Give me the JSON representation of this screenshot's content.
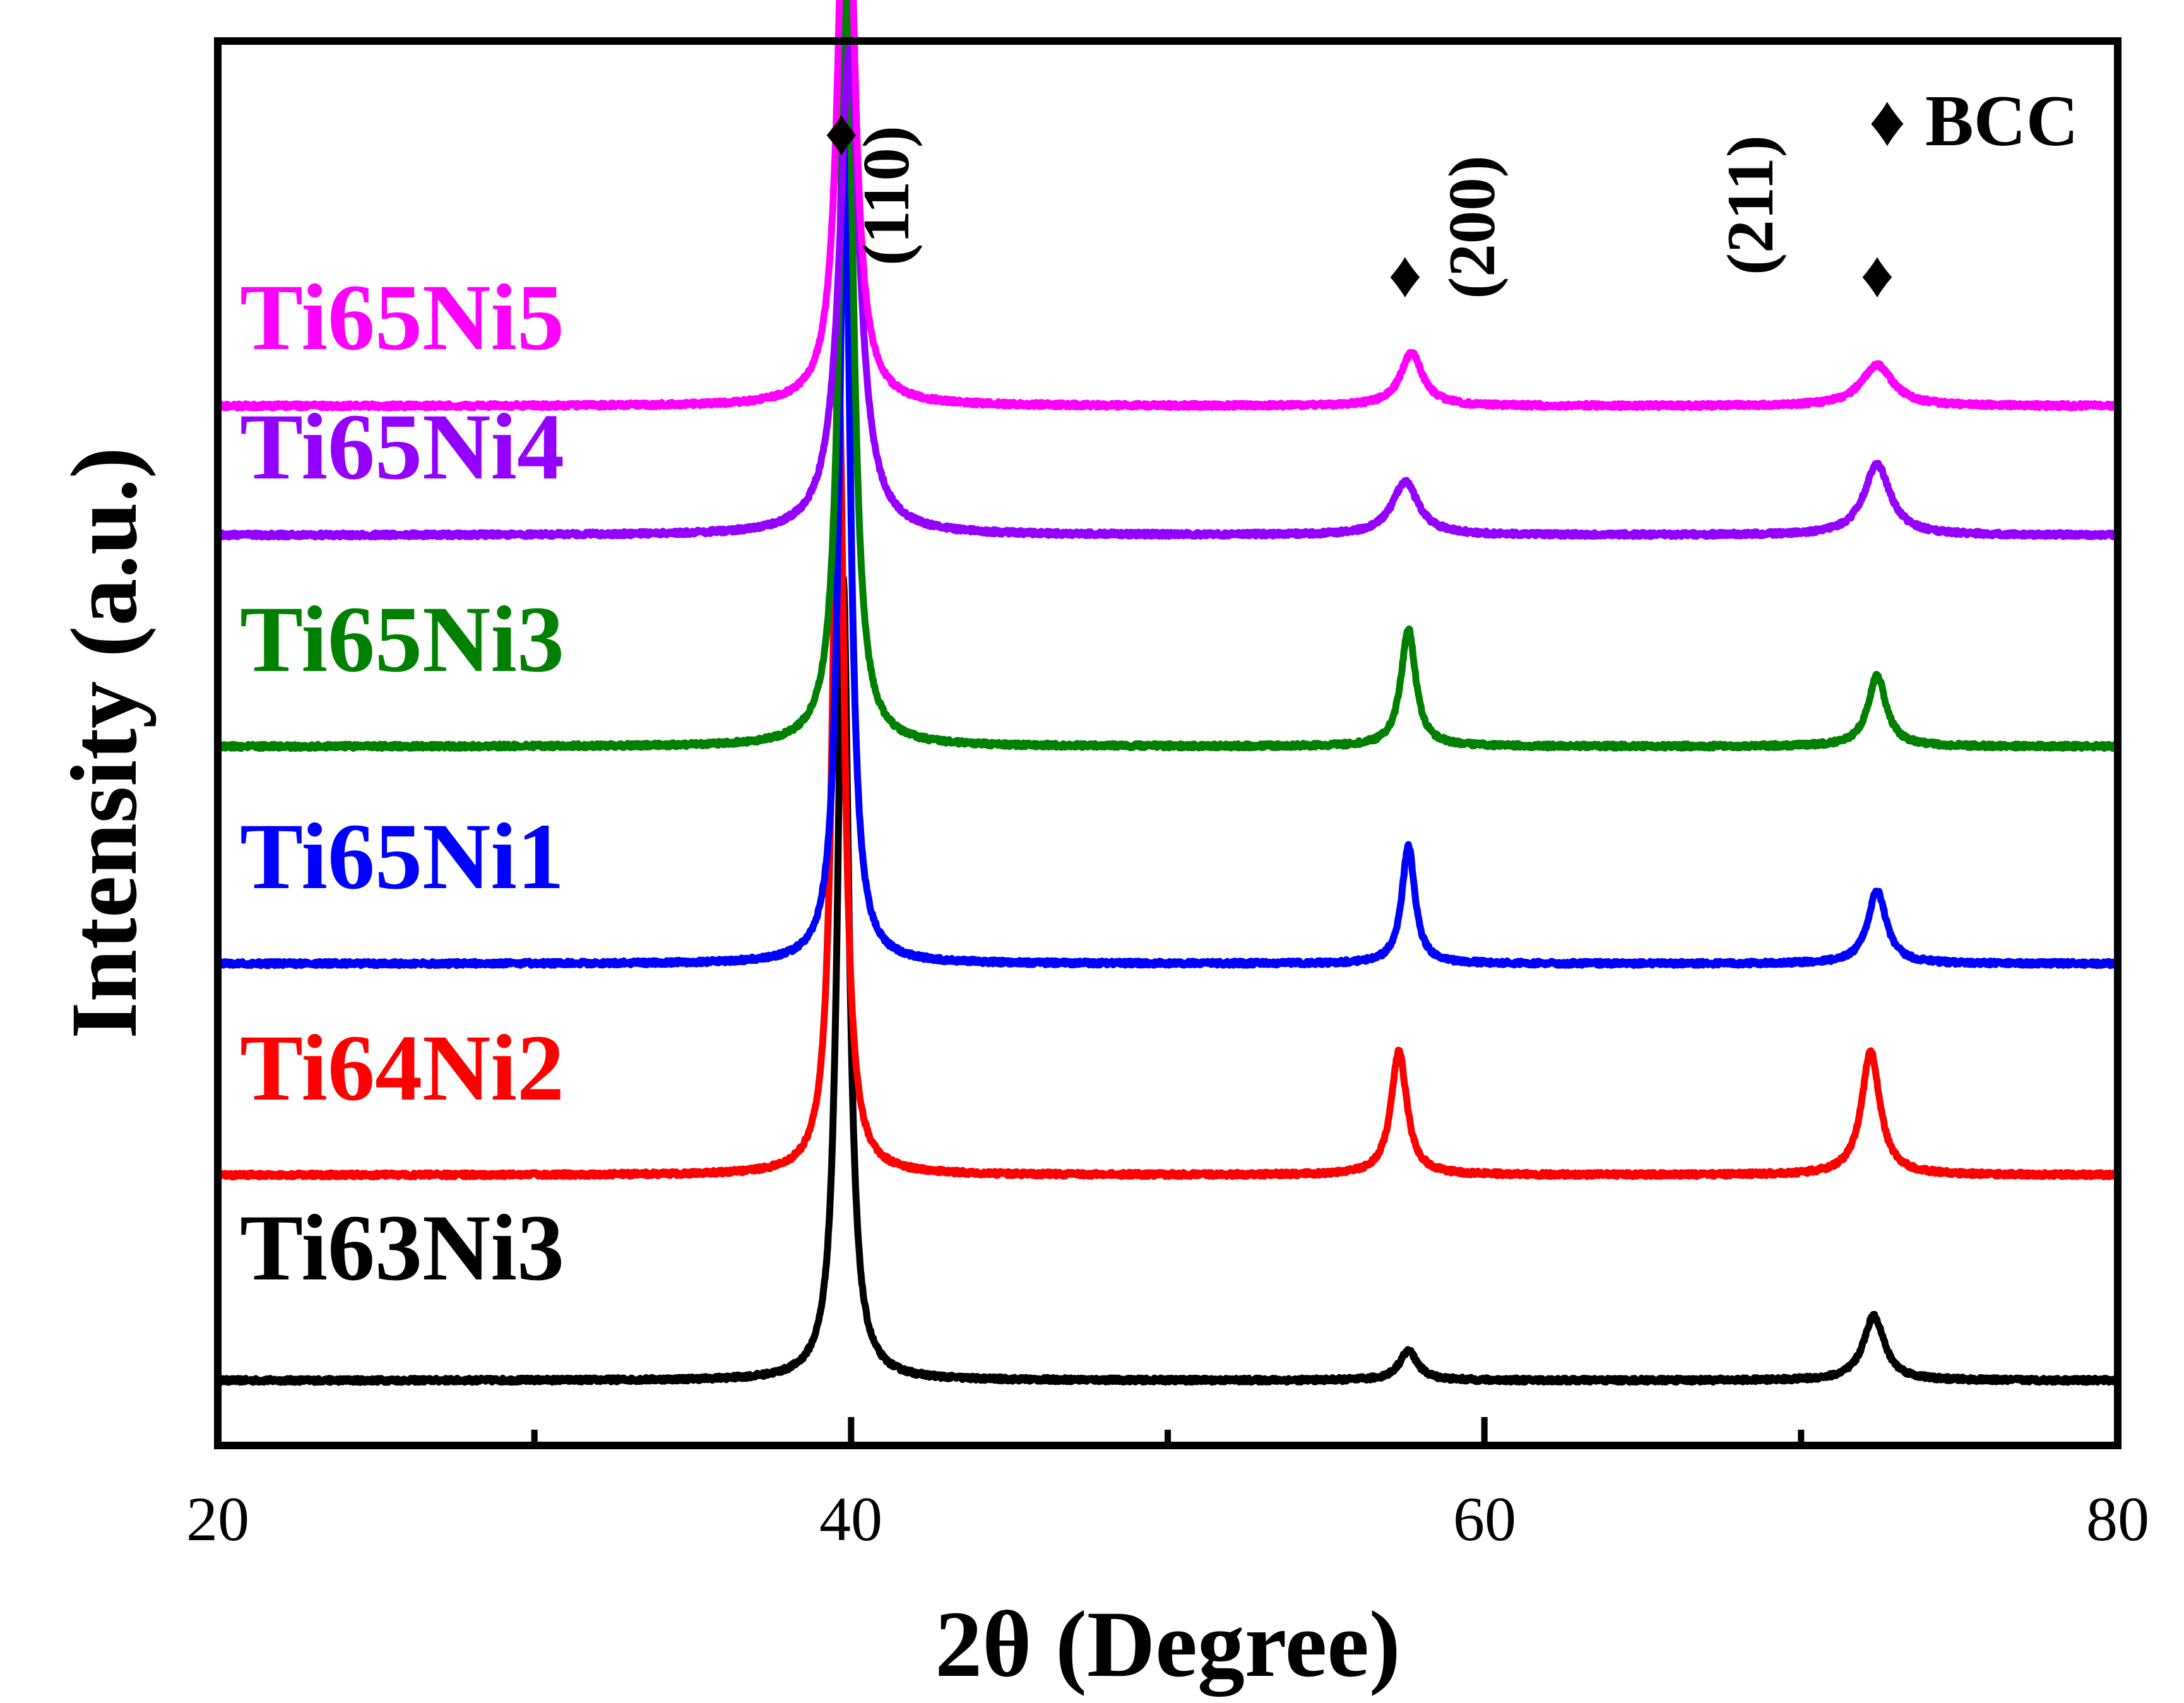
{
  "chart_data": {
    "type": "line",
    "title": "",
    "xlabel": "2θ (Degree)",
    "ylabel": "Intensity (a.u.)",
    "xlim": [
      20,
      80
    ],
    "ylim": [
      0,
      11
    ],
    "xticks": [
      20,
      40,
      60,
      80
    ],
    "xtick_labels": [
      "20",
      "40",
      "60",
      "80"
    ],
    "minor_xticks": [
      30,
      50,
      70
    ],
    "grid": false,
    "yticks_visible": false,
    "peaks": [
      {
        "hkl": "(110)",
        "two_theta": 39.7
      },
      {
        "hkl": "(200)",
        "two_theta": 57.5
      },
      {
        "hkl": "(211)",
        "two_theta": 72.4
      }
    ],
    "series": [
      {
        "name": "Ti63Ni3",
        "color": "#000000",
        "baseline": 0.15,
        "peaks": [
          {
            "x": 39.75,
            "height": 6.85,
            "width": 0.22
          },
          {
            "x": 57.6,
            "height": 0.25,
            "width": 0.35
          },
          {
            "x": 72.3,
            "height": 0.55,
            "width": 0.4
          }
        ]
      },
      {
        "name": "Ti64Ni2",
        "color": "#ff0000",
        "baseline": 1.9,
        "peaks": [
          {
            "x": 39.6,
            "height": 6.95,
            "width": 0.22
          },
          {
            "x": 57.3,
            "height": 1.05,
            "width": 0.3
          },
          {
            "x": 72.2,
            "height": 1.05,
            "width": 0.35
          }
        ]
      },
      {
        "name": "Ti65Ni1",
        "color": "#0000ff",
        "baseline": 3.7,
        "peaks": [
          {
            "x": 39.8,
            "height": 6.95,
            "width": 0.22
          },
          {
            "x": 57.6,
            "height": 1.0,
            "width": 0.25
          },
          {
            "x": 72.4,
            "height": 0.62,
            "width": 0.35
          }
        ]
      },
      {
        "name": "Ti65Ni3",
        "color": "#008000",
        "baseline": 5.55,
        "peaks": [
          {
            "x": 39.85,
            "height": 7.0,
            "width": 0.25
          },
          {
            "x": 57.6,
            "height": 1.0,
            "width": 0.28
          },
          {
            "x": 72.4,
            "height": 0.6,
            "width": 0.35
          }
        ]
      },
      {
        "name": "Ti65Ni4",
        "color": "#9400ff",
        "baseline": 7.35,
        "peaks": [
          {
            "x": 39.95,
            "height": 4.15,
            "width": 0.38
          },
          {
            "x": 57.5,
            "height": 0.45,
            "width": 0.5
          },
          {
            "x": 72.4,
            "height": 0.6,
            "width": 0.5
          }
        ]
      },
      {
        "name": "Ti65Ni5",
        "color": "#ff00ff",
        "baseline": 8.45,
        "peaks": [
          {
            "x": 39.85,
            "height": 5.6,
            "width": 0.28
          },
          {
            "x": 57.7,
            "height": 0.45,
            "width": 0.42
          },
          {
            "x": 72.4,
            "height": 0.35,
            "width": 0.6
          }
        ]
      }
    ],
    "annotations": [
      {
        "text": "(110)",
        "marker": "♦",
        "x": 39.7
      },
      {
        "text": "(200)",
        "marker": "♦",
        "x": 57.5
      },
      {
        "text": "(211)",
        "marker": "♦",
        "x": 72.4
      }
    ],
    "legend": {
      "marker": "♦",
      "label": "BCC",
      "position": "top-right"
    }
  }
}
